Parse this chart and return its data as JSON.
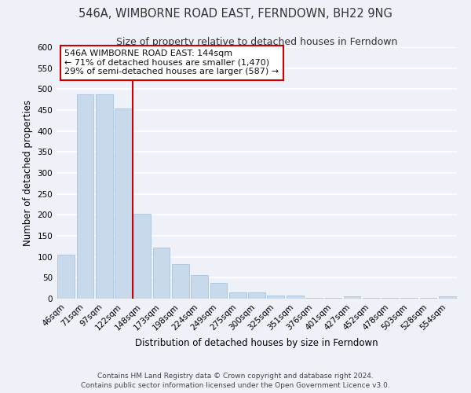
{
  "title": "546A, WIMBORNE ROAD EAST, FERNDOWN, BH22 9NG",
  "subtitle": "Size of property relative to detached houses in Ferndown",
  "xlabel": "Distribution of detached houses by size in Ferndown",
  "ylabel": "Number of detached properties",
  "bin_labels": [
    "46sqm",
    "71sqm",
    "97sqm",
    "122sqm",
    "148sqm",
    "173sqm",
    "198sqm",
    "224sqm",
    "249sqm",
    "275sqm",
    "300sqm",
    "325sqm",
    "351sqm",
    "376sqm",
    "401sqm",
    "427sqm",
    "452sqm",
    "478sqm",
    "503sqm",
    "528sqm",
    "554sqm"
  ],
  "bar_heights": [
    105,
    487,
    487,
    453,
    202,
    121,
    83,
    56,
    38,
    15,
    15,
    8,
    8,
    2,
    2,
    5,
    2,
    2,
    2,
    2,
    5
  ],
  "bar_color": "#c8d9ec",
  "bar_edge_color": "#a8c4de",
  "vline_color": "#cc0000",
  "ylim": [
    0,
    600
  ],
  "yticks": [
    0,
    50,
    100,
    150,
    200,
    250,
    300,
    350,
    400,
    450,
    500,
    550,
    600
  ],
  "annotation_title": "546A WIMBORNE ROAD EAST: 144sqm",
  "annotation_line1": "← 71% of detached houses are smaller (1,470)",
  "annotation_line2": "29% of semi-detached houses are larger (587) →",
  "annotation_box_color": "#ffffff",
  "annotation_box_edge_color": "#cc0000",
  "footer_line1": "Contains HM Land Registry data © Crown copyright and database right 2024.",
  "footer_line2": "Contains public sector information licensed under the Open Government Licence v3.0.",
  "background_color": "#eef2f8",
  "grid_color": "#ffffff",
  "title_fontsize": 10.5,
  "subtitle_fontsize": 9,
  "axis_label_fontsize": 8.5,
  "tick_fontsize": 7.5,
  "annotation_fontsize": 8,
  "footer_fontsize": 6.5
}
